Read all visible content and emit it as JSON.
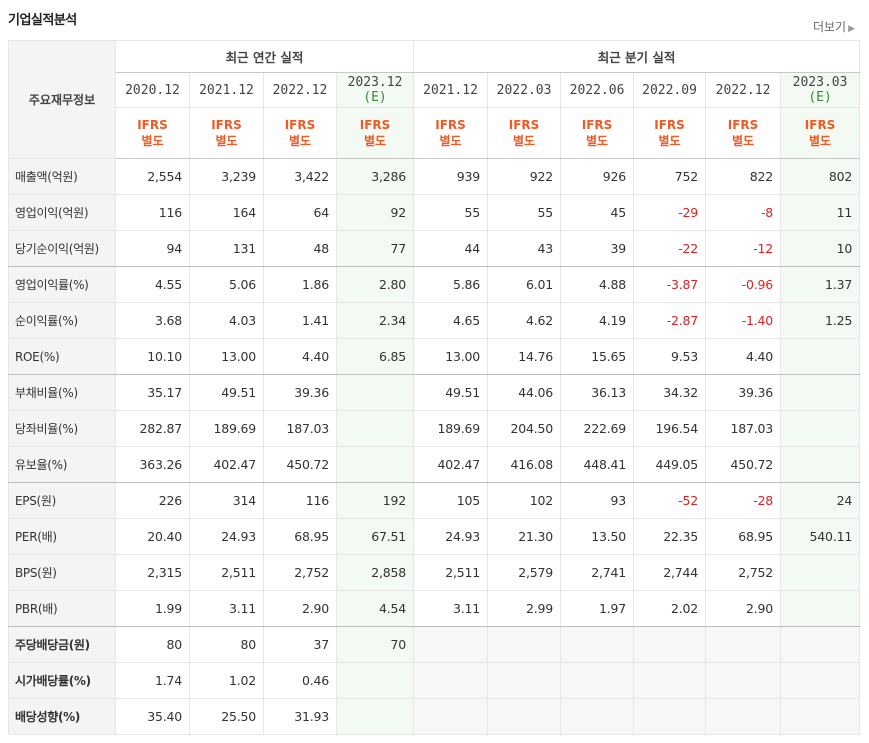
{
  "header": {
    "title": "기업실적분석",
    "more_label": "더보기"
  },
  "table": {
    "label_header": "주요재무정보",
    "annual_group": "최근 연간 실적",
    "quarter_group": "최근 분기 실적",
    "columns": [
      {
        "period": "2020.12",
        "est": false,
        "std1": "IFRS",
        "std2": "별도"
      },
      {
        "period": "2021.12",
        "est": false,
        "std1": "IFRS",
        "std2": "별도"
      },
      {
        "period": "2022.12",
        "est": false,
        "std1": "IFRS",
        "std2": "별도"
      },
      {
        "period": "2023.12",
        "est": true,
        "est_mark": "(E)",
        "std1": "IFRS",
        "std2": "별도"
      },
      {
        "period": "2021.12",
        "est": false,
        "std1": "IFRS",
        "std2": "별도"
      },
      {
        "period": "2022.03",
        "est": false,
        "std1": "IFRS",
        "std2": "별도"
      },
      {
        "period": "2022.06",
        "est": false,
        "std1": "IFRS",
        "std2": "별도"
      },
      {
        "period": "2022.09",
        "est": false,
        "std1": "IFRS",
        "std2": "별도"
      },
      {
        "period": "2022.12",
        "est": false,
        "std1": "IFRS",
        "std2": "별도"
      },
      {
        "period": "2023.03",
        "est": true,
        "est_mark": "(E)",
        "std1": "IFRS",
        "std2": "별도"
      }
    ],
    "rows": [
      {
        "label": "매출액(억원)",
        "bold": false,
        "values": [
          "2,554",
          "3,239",
          "3,422",
          "3,286",
          "939",
          "922",
          "926",
          "752",
          "822",
          "802"
        ]
      },
      {
        "label": "영업이익(억원)",
        "bold": false,
        "values": [
          "116",
          "164",
          "64",
          "92",
          "55",
          "55",
          "45",
          "-29",
          "-8",
          "11"
        ]
      },
      {
        "label": "당기순이익(억원)",
        "bold": false,
        "group_end": true,
        "values": [
          "94",
          "131",
          "48",
          "77",
          "44",
          "43",
          "39",
          "-22",
          "-12",
          "10"
        ]
      },
      {
        "label": "영업이익률(%)",
        "bold": false,
        "values": [
          "4.55",
          "5.06",
          "1.86",
          "2.80",
          "5.86",
          "6.01",
          "4.88",
          "-3.87",
          "-0.96",
          "1.37"
        ]
      },
      {
        "label": "순이익률(%)",
        "bold": false,
        "values": [
          "3.68",
          "4.03",
          "1.41",
          "2.34",
          "4.65",
          "4.62",
          "4.19",
          "-2.87",
          "-1.40",
          "1.25"
        ]
      },
      {
        "label": "ROE(%)",
        "bold": false,
        "group_end": true,
        "values": [
          "10.10",
          "13.00",
          "4.40",
          "6.85",
          "13.00",
          "14.76",
          "15.65",
          "9.53",
          "4.40",
          ""
        ]
      },
      {
        "label": "부채비율(%)",
        "bold": false,
        "values": [
          "35.17",
          "49.51",
          "39.36",
          "",
          "49.51",
          "44.06",
          "36.13",
          "34.32",
          "39.36",
          ""
        ]
      },
      {
        "label": "당좌비율(%)",
        "bold": false,
        "values": [
          "282.87",
          "189.69",
          "187.03",
          "",
          "189.69",
          "204.50",
          "222.69",
          "196.54",
          "187.03",
          ""
        ]
      },
      {
        "label": "유보율(%)",
        "bold": false,
        "group_end": true,
        "values": [
          "363.26",
          "402.47",
          "450.72",
          "",
          "402.47",
          "416.08",
          "448.41",
          "449.05",
          "450.72",
          ""
        ]
      },
      {
        "label": "EPS(원)",
        "bold": false,
        "values": [
          "226",
          "314",
          "116",
          "192",
          "105",
          "102",
          "93",
          "-52",
          "-28",
          "24"
        ]
      },
      {
        "label": "PER(배)",
        "bold": false,
        "values": [
          "20.40",
          "24.93",
          "68.95",
          "67.51",
          "24.93",
          "21.30",
          "13.50",
          "22.35",
          "68.95",
          "540.11"
        ]
      },
      {
        "label": "BPS(원)",
        "bold": false,
        "values": [
          "2,315",
          "2,511",
          "2,752",
          "2,858",
          "2,511",
          "2,579",
          "2,741",
          "2,744",
          "2,752",
          ""
        ]
      },
      {
        "label": "PBR(배)",
        "bold": false,
        "group_end": true,
        "values": [
          "1.99",
          "3.11",
          "2.90",
          "4.54",
          "3.11",
          "2.99",
          "1.97",
          "2.02",
          "2.90",
          ""
        ]
      },
      {
        "label": "주당배당금(원)",
        "bold": true,
        "values": [
          "80",
          "80",
          "37",
          "70",
          null,
          null,
          null,
          null,
          null,
          null
        ]
      },
      {
        "label": "시가배당률(%)",
        "bold": true,
        "values": [
          "1.74",
          "1.02",
          "0.46",
          "",
          null,
          null,
          null,
          null,
          null,
          null
        ]
      },
      {
        "label": "배당성향(%)",
        "bold": true,
        "values": [
          "35.40",
          "25.50",
          "31.93",
          "",
          null,
          null,
          null,
          null,
          null,
          null
        ]
      }
    ]
  },
  "colors": {
    "negative": "#e02020",
    "ifrs": "#ee5a24",
    "estimate": "#3a8a3a",
    "estimate_bg": "#f3faf3"
  }
}
